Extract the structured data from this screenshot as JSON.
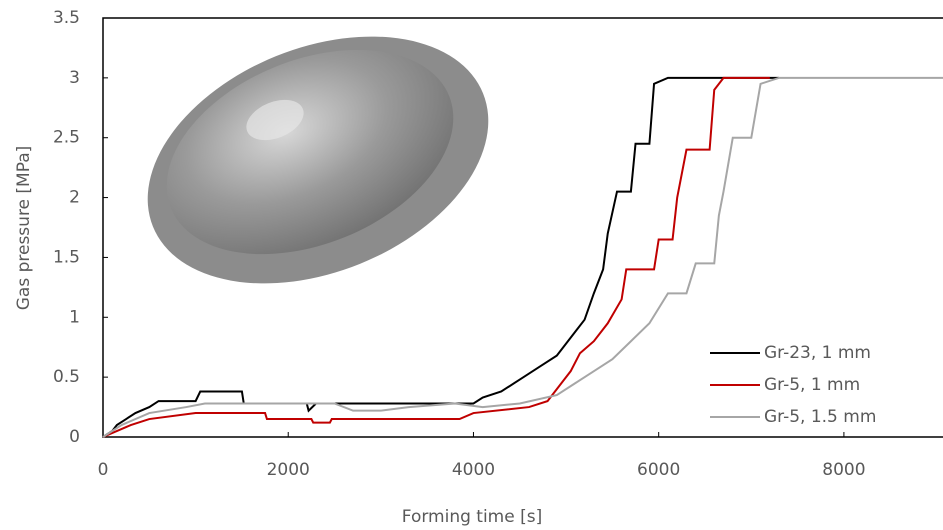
{
  "chart_data": {
    "type": "line",
    "xlabel": "Forming time [s]",
    "ylabel": "Gas pressure [MPa]",
    "xlim": [
      0,
      9070
    ],
    "ylim": [
      0,
      3.5
    ],
    "xticks": [
      0,
      2000,
      4000,
      6000,
      8000
    ],
    "yticks": [
      0,
      0.5,
      1,
      1.5,
      2,
      2.5,
      3,
      3.5
    ],
    "legend": "lower right",
    "series": [
      {
        "name": "Gr-23, 1 mm",
        "color": "#000000",
        "x": [
          0,
          100,
          150,
          250,
          350,
          500,
          600,
          1000,
          1050,
          1500,
          1520,
          2200,
          2220,
          2300,
          4000,
          4100,
          4300,
          4500,
          4700,
          4900,
          5000,
          5100,
          5200,
          5300,
          5400,
          5450,
          5550,
          5700,
          5750,
          5900,
          5950,
          6100,
          7300
        ],
        "values": [
          0,
          0.05,
          0.1,
          0.15,
          0.2,
          0.25,
          0.3,
          0.3,
          0.38,
          0.38,
          0.28,
          0.28,
          0.22,
          0.28,
          0.28,
          0.33,
          0.38,
          0.48,
          0.58,
          0.68,
          0.78,
          0.88,
          0.98,
          1.2,
          1.4,
          1.7,
          2.05,
          2.05,
          2.45,
          2.45,
          2.95,
          3,
          3
        ]
      },
      {
        "name": "Gr-5, 1 mm",
        "color": "#c00000",
        "x": [
          0,
          300,
          500,
          1000,
          1750,
          1770,
          2250,
          2270,
          2450,
          2470,
          3850,
          4000,
          4600,
          4800,
          4900,
          5050,
          5150,
          5300,
          5450,
          5600,
          5650,
          5950,
          6000,
          6150,
          6200,
          6300,
          6550,
          6600,
          6700,
          7200
        ],
        "values": [
          0,
          0.1,
          0.15,
          0.2,
          0.2,
          0.15,
          0.15,
          0.12,
          0.12,
          0.15,
          0.15,
          0.2,
          0.25,
          0.3,
          0.4,
          0.55,
          0.7,
          0.8,
          0.95,
          1.15,
          1.4,
          1.4,
          1.65,
          1.65,
          2,
          2.4,
          2.4,
          2.9,
          3,
          3
        ]
      },
      {
        "name": "Gr-5, 1.5 mm",
        "color": "#a6a6a6",
        "x": [
          0,
          200,
          500,
          900,
          1100,
          2500,
          2700,
          3000,
          3300,
          3800,
          4100,
          4500,
          4900,
          5100,
          5300,
          5500,
          5700,
          5900,
          6100,
          6300,
          6400,
          6600,
          6650,
          6700,
          6800,
          7000,
          7100,
          7300,
          9070
        ],
        "values": [
          0,
          0.1,
          0.2,
          0.25,
          0.28,
          0.28,
          0.22,
          0.22,
          0.25,
          0.28,
          0.25,
          0.28,
          0.35,
          0.45,
          0.55,
          0.65,
          0.8,
          0.95,
          1.2,
          1.2,
          1.45,
          1.45,
          1.85,
          2.05,
          2.5,
          2.5,
          2.95,
          3,
          3
        ]
      }
    ]
  }
}
